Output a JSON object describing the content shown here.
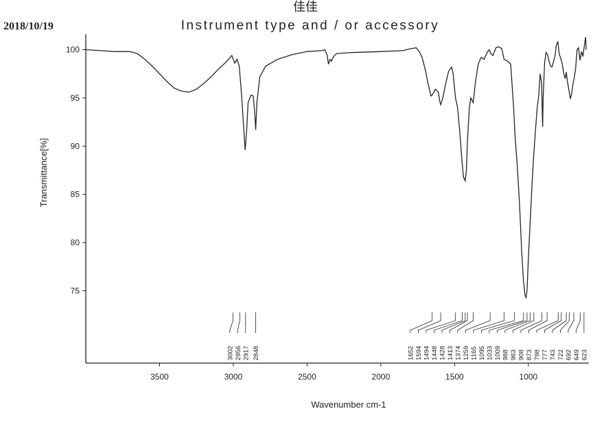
{
  "chart_data": {
    "type": "line",
    "top_label": "佳佳",
    "title": "Instrument type and / or accessory",
    "date": "2018/10/19",
    "x_label": "Wavenumber cm-1",
    "y_label": "Transmittance[%]",
    "color": "#222222",
    "xlim": [
      4000,
      590
    ],
    "xticks": [
      3500,
      3000,
      2500,
      2000,
      1500,
      1000
    ],
    "ylim": [
      67.5,
      101.6
    ],
    "yticks": [
      75,
      80,
      85,
      90,
      95,
      100
    ],
    "x": [
      4000,
      3900,
      3800,
      3700,
      3650,
      3600,
      3550,
      3500,
      3450,
      3400,
      3350,
      3300,
      3250,
      3200,
      3150,
      3100,
      3050,
      3010,
      2990,
      2975,
      2960,
      2945,
      2930,
      2920,
      2910,
      2900,
      2880,
      2865,
      2855,
      2848,
      2840,
      2820,
      2780,
      2700,
      2600,
      2500,
      2400,
      2380,
      2365,
      2355,
      2345,
      2335,
      2320,
      2300,
      2200,
      2000,
      1850,
      1800,
      1760,
      1740,
      1720,
      1700,
      1680,
      1660,
      1652,
      1630,
      1610,
      1600,
      1594,
      1580,
      1560,
      1540,
      1520,
      1510,
      1494,
      1480,
      1465,
      1450,
      1440,
      1428,
      1420,
      1413,
      1400,
      1390,
      1374,
      1360,
      1340,
      1320,
      1300,
      1280,
      1265,
      1255,
      1240,
      1220,
      1200,
      1180,
      1165,
      1140,
      1120,
      1100,
      1090,
      1075,
      1060,
      1045,
      1033,
      1022,
      1015,
      1009,
      998,
      988,
      975,
      963,
      950,
      940,
      930,
      920,
      910,
      905,
      903,
      900,
      890,
      880,
      870,
      860,
      850,
      840,
      820,
      810,
      800,
      790,
      778,
      770,
      760,
      750,
      743,
      735,
      725,
      715,
      706,
      697,
      690,
      680,
      670,
      660,
      650,
      640,
      630,
      620,
      612,
      608
    ],
    "values": [
      100,
      99.9,
      99.8,
      99.8,
      99.6,
      99.0,
      98.3,
      97.5,
      96.7,
      96.0,
      95.7,
      95.6,
      95.9,
      96.5,
      97.2,
      98.0,
      98.7,
      99.4,
      98.6,
      99.0,
      98.3,
      95.5,
      92.0,
      89.6,
      91.5,
      94.5,
      95.3,
      95.2,
      93.5,
      91.7,
      94.5,
      97.2,
      98.3,
      99.0,
      99.5,
      99.8,
      99.9,
      100.0,
      99.5,
      98.5,
      99.0,
      98.8,
      99.3,
      99.6,
      99.7,
      99.8,
      99.9,
      100.1,
      100.2,
      99.8,
      99.2,
      98.0,
      96.5,
      95.2,
      95.3,
      95.9,
      95.6,
      94.6,
      94.3,
      95.0,
      96.5,
      97.8,
      98.2,
      97.5,
      95.0,
      94.0,
      91.5,
      88.5,
      86.8,
      86.4,
      87.5,
      90.5,
      94.0,
      95.0,
      94.5,
      96.5,
      98.5,
      99.2,
      99.0,
      99.7,
      100.0,
      99.6,
      99.4,
      100.2,
      100.3,
      100.1,
      99.0,
      98.8,
      98.5,
      94.0,
      91.0,
      88.0,
      84.0,
      79.0,
      76.0,
      74.5,
      74.3,
      75.0,
      79.0,
      82.0,
      86.0,
      89.2,
      92.0,
      94.0,
      95.2,
      97.5,
      96.5,
      93.0,
      92.0,
      95.0,
      98.6,
      99.7,
      99.5,
      98.8,
      98.3,
      98.2,
      99.3,
      100.5,
      100.8,
      99.5,
      99.0,
      98.5,
      97.5,
      97.0,
      97.7,
      96.7,
      95.8,
      94.9,
      95.5,
      96.5,
      97.0,
      98.0,
      100.0,
      100.2,
      98.9,
      99.8,
      99.3,
      100.5,
      101.3,
      100.0
    ],
    "peaks": [
      3002,
      2956,
      2917,
      2848,
      1652,
      1594,
      1494,
      1448,
      1428,
      1413,
      1374,
      1259,
      1165,
      1095,
      1033,
      1009,
      988,
      963,
      908,
      873,
      798,
      777,
      743,
      722,
      692,
      649,
      623
    ]
  }
}
